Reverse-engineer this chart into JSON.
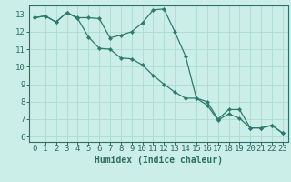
{
  "xlabel": "Humidex (Indice chaleur)",
  "bg_color": "#cceee8",
  "grid_color": "#aaddcc",
  "line_color": "#2d7a6e",
  "xlim": [
    -0.5,
    23.5
  ],
  "ylim": [
    5.7,
    13.5
  ],
  "line1_x": [
    0,
    1,
    2,
    3,
    4,
    5,
    6,
    7,
    8,
    9,
    10,
    11,
    12,
    13,
    14,
    15,
    16,
    17,
    18,
    19,
    20,
    21,
    22,
    23
  ],
  "line1_y": [
    12.8,
    12.9,
    12.55,
    13.1,
    12.8,
    12.8,
    12.75,
    11.65,
    11.8,
    12.0,
    12.5,
    13.25,
    13.3,
    12.0,
    10.6,
    8.2,
    8.0,
    7.0,
    7.55,
    7.55,
    6.5,
    6.5,
    6.65,
    6.2
  ],
  "line2_x": [
    0,
    1,
    2,
    3,
    4,
    5,
    6,
    7,
    8,
    9,
    10,
    11,
    12,
    13,
    14,
    15,
    16,
    17,
    18,
    19,
    20,
    21,
    22,
    23
  ],
  "line2_y": [
    12.8,
    12.9,
    12.55,
    13.1,
    12.75,
    11.7,
    11.05,
    11.0,
    10.5,
    10.45,
    10.1,
    9.5,
    9.0,
    8.55,
    8.2,
    8.2,
    7.8,
    6.95,
    7.3,
    7.05,
    6.5,
    6.5,
    6.65,
    6.2
  ],
  "yticks": [
    6,
    7,
    8,
    9,
    10,
    11,
    12,
    13
  ],
  "xticks": [
    0,
    1,
    2,
    3,
    4,
    5,
    6,
    7,
    8,
    9,
    10,
    11,
    12,
    13,
    14,
    15,
    16,
    17,
    18,
    19,
    20,
    21,
    22,
    23
  ],
  "spine_color": "#2d6e66",
  "tick_color": "#2d6e66",
  "label_fontsize": 6.5,
  "xlabel_fontsize": 7.0
}
